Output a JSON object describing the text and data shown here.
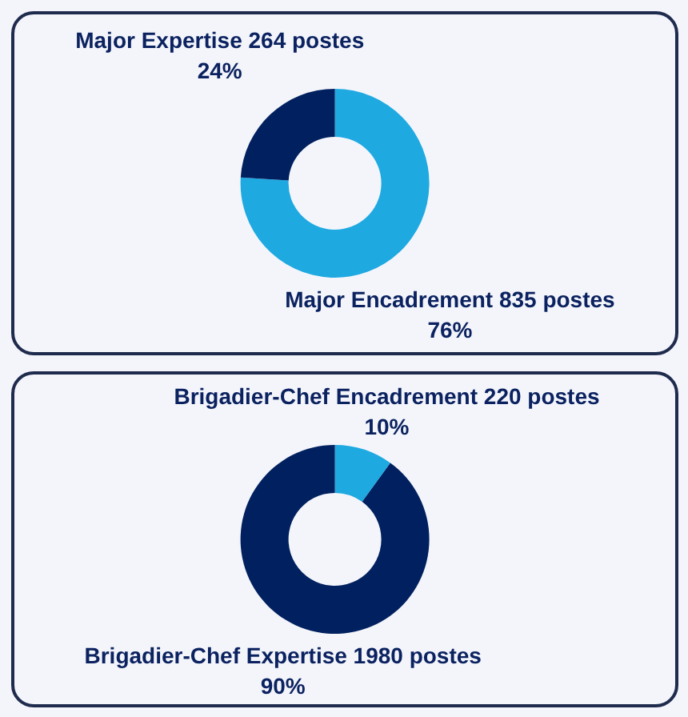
{
  "chart_data": [
    {
      "type": "donut",
      "categories": [
        "Major Encadrement",
        "Major Expertise"
      ],
      "values": [
        835,
        264
      ],
      "colors": [
        "#1fa9e1",
        "#00205f"
      ],
      "value_labels": [
        "835 postes\n76%",
        "264 postes\n24%"
      ]
    },
    {
      "type": "donut",
      "categories": [
        "Brigadier-Chef Encadrement",
        "Brigadier-Chef Expertise"
      ],
      "values": [
        220,
        1980
      ],
      "colors": [
        "#1fa9e1",
        "#00205f"
      ],
      "value_labels": [
        "220 postes\n10%",
        "1980 postes\n90%"
      ]
    }
  ]
}
